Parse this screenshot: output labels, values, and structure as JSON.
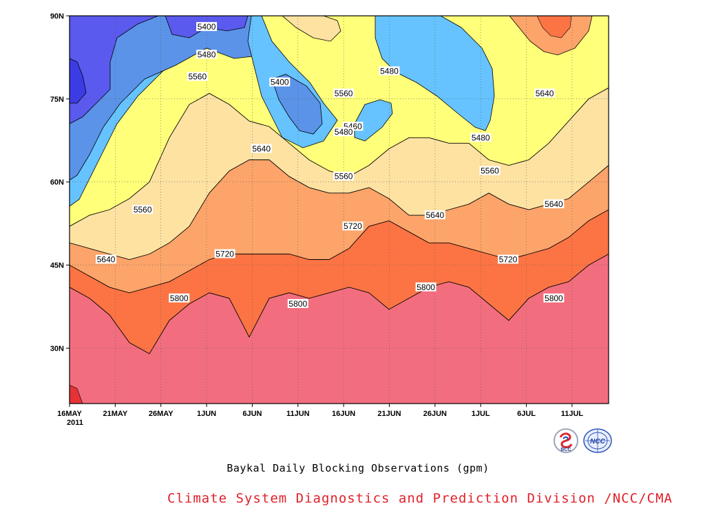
{
  "figure": {
    "title": "Baykal Daily Blocking Observations (gpm)",
    "credit": "Climate System Diagnostics and Prediction Division /NCC/CMA",
    "logos": [
      {
        "name": "bcc-logo",
        "text": "BCC"
      },
      {
        "name": "ncc-logo",
        "text": "NCC"
      }
    ]
  },
  "chart_data": {
    "type": "contour",
    "x_ticks": [
      "16MAY",
      "21MAY",
      "26MAY",
      "1JUN",
      "6JUN",
      "11JUN",
      "16JUN",
      "21JUN",
      "26JUN",
      "1JUL",
      "6JUL",
      "11JUL"
    ],
    "x_year_label": "2011",
    "y_ticks": [
      "30N",
      "45N",
      "60N",
      "75N",
      "90N"
    ],
    "y_tick_values": [
      30,
      45,
      60,
      75,
      90
    ],
    "ylim": [
      20,
      90
    ],
    "xlim_days": [
      0,
      59
    ],
    "grid": "dotted",
    "contour_levels": [
      5320,
      5400,
      5480,
      5560,
      5640,
      5720,
      5800,
      5880
    ],
    "fill_colors": [
      "#3c3ce6",
      "#5a5aee",
      "#5b93e8",
      "#66c3ff",
      "#ffff7a",
      "#fee2a2",
      "#fca46a",
      "#fc7444",
      "#f26e7e",
      "#e53236"
    ],
    "contours": [
      {
        "level": 5800,
        "lat": [
          41,
          39,
          36,
          31,
          29,
          35,
          38,
          40,
          39,
          32,
          39,
          40,
          39,
          40,
          41,
          40,
          37,
          39,
          41,
          42,
          41,
          38,
          35,
          39,
          41,
          42,
          45,
          47
        ]
      },
      {
        "level": 5720,
        "lat": [
          45,
          43,
          41,
          40,
          41,
          42,
          44,
          46,
          47,
          47,
          47,
          47,
          46,
          46,
          48,
          52,
          53,
          51,
          49,
          49,
          48,
          47,
          46,
          47,
          48,
          50,
          53,
          55
        ]
      },
      {
        "level": 5640,
        "lat": [
          49,
          48,
          47,
          46,
          47,
          49,
          52,
          58,
          62,
          64,
          64,
          61,
          59,
          58,
          58,
          59,
          57,
          54,
          54,
          55,
          56,
          58,
          56,
          55,
          56,
          57,
          60,
          63
        ]
      },
      {
        "level": 5560,
        "lat": [
          52,
          54,
          55,
          57,
          60,
          68,
          74,
          76,
          74,
          71,
          70,
          67,
          64,
          62,
          61,
          63,
          66,
          68,
          68,
          67,
          67,
          64,
          63,
          64,
          67,
          71,
          75,
          77
        ]
      }
    ],
    "labels": [
      {
        "text": "5400",
        "day": 15,
        "lat": 88
      },
      {
        "text": "5480",
        "day": 15,
        "lat": 83
      },
      {
        "text": "5560",
        "day": 14,
        "lat": 79
      },
      {
        "text": "5400",
        "day": 23,
        "lat": 78
      },
      {
        "text": "5560",
        "day": 30,
        "lat": 76
      },
      {
        "text": "5480",
        "day": 35,
        "lat": 80
      },
      {
        "text": "5460",
        "day": 31,
        "lat": 70
      },
      {
        "text": "5480",
        "day": 30,
        "lat": 69
      },
      {
        "text": "5480",
        "day": 45,
        "lat": 68
      },
      {
        "text": "5560",
        "day": 46,
        "lat": 62
      },
      {
        "text": "5640",
        "day": 52,
        "lat": 76
      },
      {
        "text": "5640",
        "day": 21,
        "lat": 66
      },
      {
        "text": "5560",
        "day": 30,
        "lat": 61
      },
      {
        "text": "5560",
        "day": 8,
        "lat": 55
      },
      {
        "text": "5640",
        "day": 40,
        "lat": 54
      },
      {
        "text": "5640",
        "day": 53,
        "lat": 56
      },
      {
        "text": "5720",
        "day": 31,
        "lat": 52
      },
      {
        "text": "5640",
        "day": 4,
        "lat": 46
      },
      {
        "text": "5720",
        "day": 17,
        "lat": 47
      },
      {
        "text": "5720",
        "day": 48,
        "lat": 46
      },
      {
        "text": "5800",
        "day": 39,
        "lat": 41
      },
      {
        "text": "5800",
        "day": 12,
        "lat": 39
      },
      {
        "text": "5800",
        "day": 25,
        "lat": 38
      },
      {
        "text": "5800",
        "day": 53,
        "lat": 39
      }
    ]
  }
}
